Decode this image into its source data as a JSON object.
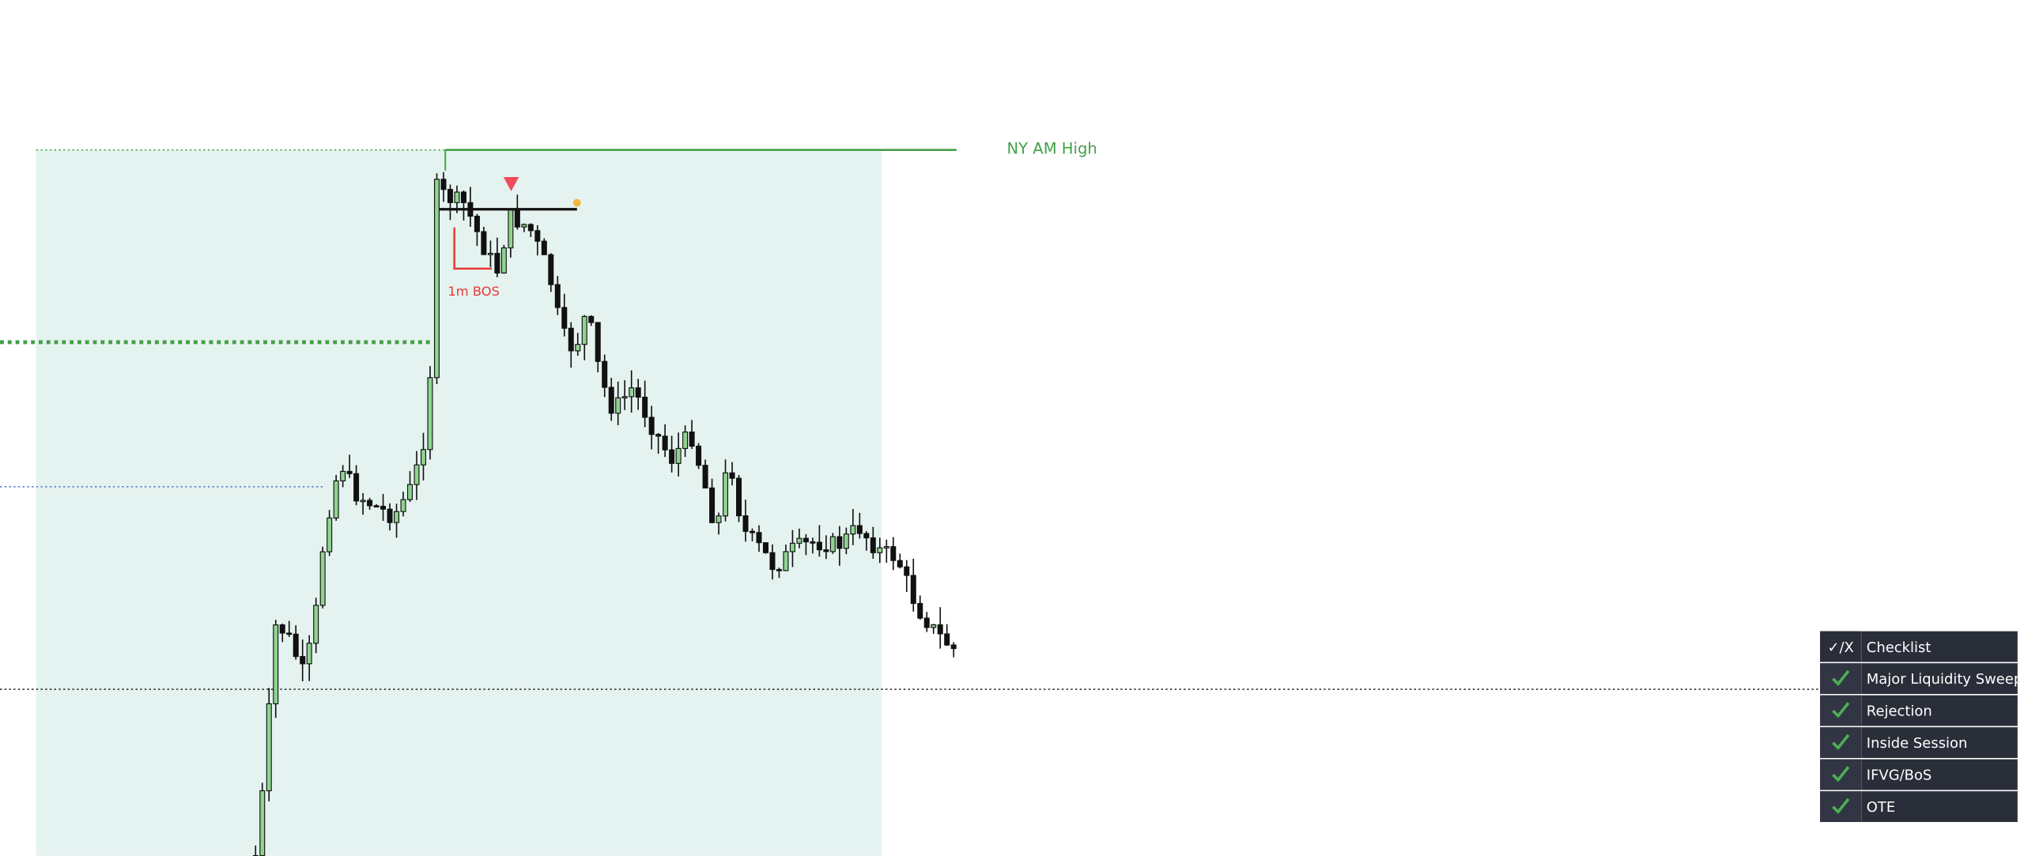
{
  "annotations": {
    "session_high": "NY AM High",
    "bos": "1m BOS"
  },
  "checklist": {
    "header": {
      "icon": "✓/X",
      "title": "Checklist"
    },
    "items": [
      "Major Liquidity Sweep",
      "Rejection",
      "Inside Session",
      "IFVG/BoS",
      "OTE"
    ]
  }
}
